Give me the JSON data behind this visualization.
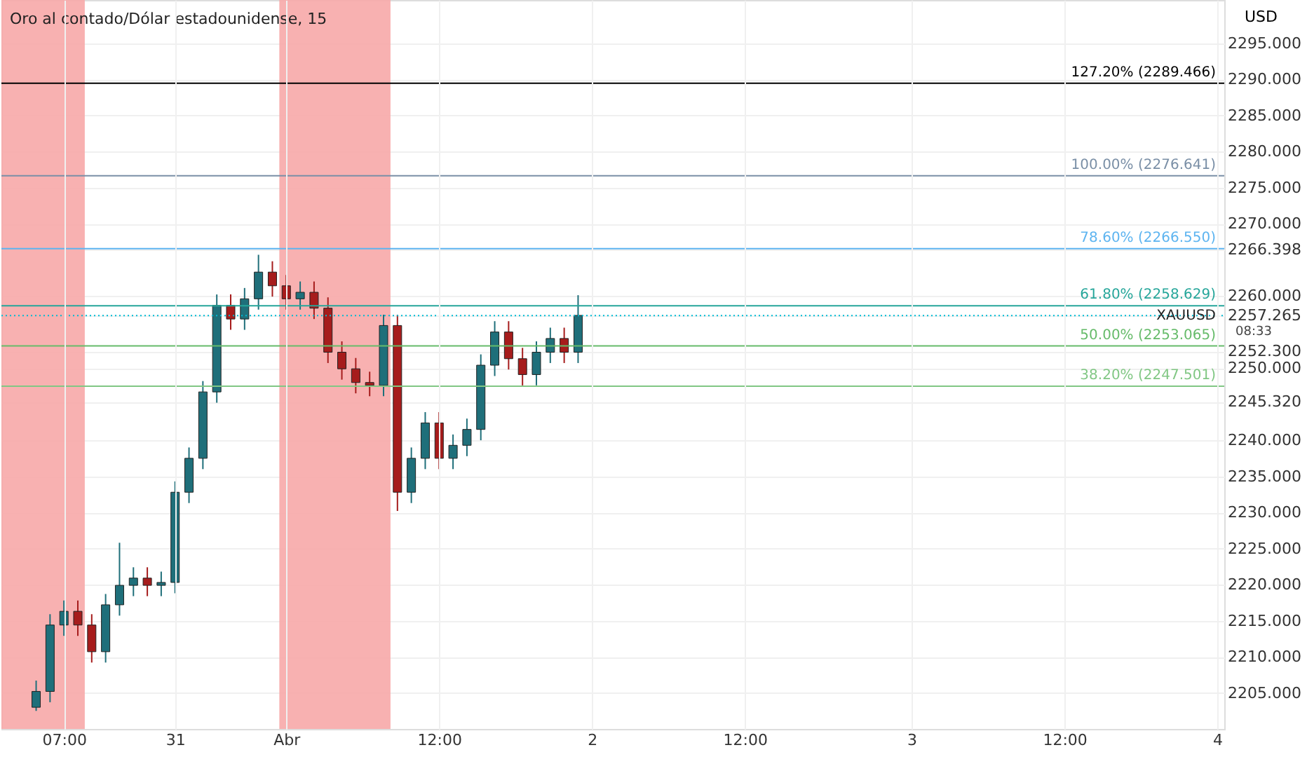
{
  "chart_data": {
    "type": "candlestick",
    "title": "Oro al contado/Dólar estadounidense, 15",
    "ylabel": "USD",
    "categories": [
      null,
      null,
      null,
      null,
      "07:00",
      null,
      null,
      null,
      null,
      null,
      null,
      null,
      "31",
      null,
      null,
      null,
      null,
      null,
      null,
      null,
      "Abr",
      null,
      null,
      null,
      null,
      null,
      null,
      null,
      null,
      null,
      null,
      "12:00",
      null,
      null,
      null,
      null,
      null,
      null,
      null,
      null,
      null,
      null,
      "2",
      null,
      null,
      null,
      null,
      null,
      null,
      null,
      null,
      null,
      null,
      "12:00",
      null,
      null,
      null,
      null,
      null,
      null,
      null,
      null,
      null,
      null,
      null,
      "3",
      null,
      null,
      null,
      null,
      null,
      null,
      null,
      null,
      null,
      null,
      "12:00",
      null,
      null,
      null,
      null,
      null,
      null,
      null,
      null,
      null,
      null,
      "4"
    ],
    "ohlc": [
      null,
      null,
      [
        2203.0,
        2206.7,
        2202.5,
        2205.2
      ],
      [
        2205.2,
        2215.9,
        2203.7,
        2214.4
      ],
      [
        2214.4,
        2217.8,
        2212.9,
        2216.3
      ],
      [
        2216.3,
        2217.8,
        2212.9,
        2214.4
      ],
      [
        2214.4,
        2215.9,
        2209.2,
        2210.7
      ],
      [
        2210.7,
        2218.7,
        2209.2,
        2217.2
      ],
      [
        2217.2,
        2225.8,
        2215.7,
        2219.9
      ],
      [
        2219.9,
        2222.4,
        2218.4,
        2220.9
      ],
      [
        2220.9,
        2222.4,
        2218.4,
        2219.9
      ],
      [
        2219.9,
        2221.8,
        2218.4,
        2220.3
      ],
      [
        2220.3,
        2234.3,
        2218.8,
        2232.8
      ],
      [
        2232.8,
        2239.0,
        2231.3,
        2237.5
      ],
      [
        2237.5,
        2248.2,
        2236.0,
        2246.7
      ],
      [
        2246.7,
        2260.2,
        2245.2,
        2258.7
      ],
      [
        2258.7,
        2260.2,
        2255.3,
        2256.8
      ],
      [
        2256.8,
        2261.1,
        2255.3,
        2259.6
      ],
      [
        2259.6,
        2265.7,
        2258.1,
        2263.3
      ],
      [
        2263.3,
        2264.8,
        2259.9,
        2261.4
      ],
      [
        2261.4,
        2262.9,
        2258.1,
        2259.6
      ],
      [
        2259.6,
        2262.0,
        2258.1,
        2260.5
      ],
      [
        2260.5,
        2262.0,
        2256.8,
        2258.3
      ],
      [
        2258.3,
        2259.8,
        2250.7,
        2252.2
      ],
      [
        2252.2,
        2253.7,
        2248.4,
        2249.9
      ],
      [
        2249.9,
        2251.4,
        2246.5,
        2248.0
      ],
      [
        2248.0,
        2249.5,
        2246.1,
        2247.6
      ],
      [
        2247.6,
        2257.4,
        2246.1,
        2255.9
      ],
      [
        2255.9,
        2257.4,
        2230.2,
        2232.8
      ],
      [
        2232.8,
        2239.0,
        2231.3,
        2237.5
      ],
      [
        2237.5,
        2243.9,
        2236.0,
        2242.4
      ],
      [
        2242.4,
        2243.9,
        2236.0,
        2237.5
      ],
      [
        2237.5,
        2240.8,
        2236.0,
        2239.3
      ],
      [
        2239.3,
        2243.0,
        2237.8,
        2241.5
      ],
      [
        2241.5,
        2251.9,
        2240.0,
        2250.4
      ],
      [
        2250.4,
        2256.5,
        2248.9,
        2255.0
      ],
      [
        2255.0,
        2256.5,
        2249.8,
        2251.3
      ],
      [
        2251.3,
        2252.8,
        2247.6,
        2249.1
      ],
      [
        2249.1,
        2253.7,
        2247.6,
        2252.2
      ],
      [
        2252.2,
        2255.6,
        2250.7,
        2254.1
      ],
      [
        2254.1,
        2255.6,
        2250.7,
        2252.2
      ],
      [
        2252.2,
        2260.1,
        2250.7,
        2257.3
      ],
      null,
      null,
      null,
      null,
      null,
      null,
      null,
      null,
      null,
      null,
      null,
      null,
      null,
      null,
      null,
      null,
      null,
      null,
      null,
      null,
      null,
      null,
      null,
      null,
      null,
      null,
      null,
      null,
      null,
      null,
      null,
      null,
      null,
      null,
      null,
      null,
      null,
      null,
      null,
      null,
      null,
      null,
      null,
      null,
      null,
      null
    ],
    "colors": [
      null,
      null,
      "#1f6f7a",
      "#1f6f7a",
      "#1f6f7a",
      "#a61c1c",
      "#a61c1c",
      "#1f6f7a",
      "#1f6f7a",
      "#1f6f7a",
      "#a61c1c",
      "#1f6f7a",
      "#1f6f7a",
      "#1f6f7a",
      "#1f6f7a",
      "#1f6f7a",
      "#a61c1c",
      "#1f6f7a",
      "#1f6f7a",
      "#a61c1c",
      "#a61c1c",
      "#1f6f7a",
      "#a61c1c",
      "#a61c1c",
      "#a61c1c",
      "#a61c1c",
      "#a61c1c",
      "#1f6f7a",
      "#a61c1c",
      "#1f6f7a",
      "#1f6f7a",
      "#a61c1c",
      "#1f6f7a",
      "#1f6f7a",
      "#1f6f7a",
      "#1f6f7a",
      "#a61c1c",
      "#a61c1c",
      "#1f6f7a",
      "#1f6f7a",
      "#a61c1c",
      "#1f6f7a",
      null,
      null,
      null,
      null,
      null,
      null,
      null,
      null,
      null,
      null,
      null,
      null,
      null,
      null,
      null,
      null,
      null,
      null,
      null,
      null,
      null,
      null,
      null,
      null,
      null,
      null,
      null,
      null,
      null,
      null,
      null,
      null,
      null,
      null,
      null,
      null,
      null,
      null,
      null,
      null,
      null,
      null,
      null,
      null,
      null,
      null
    ],
    "ylim": [
      2200,
      2301
    ],
    "yticks": [
      {
        "value": 2205,
        "label": "2205.000"
      },
      {
        "value": 2210,
        "label": "2210.000"
      },
      {
        "value": 2215,
        "label": "2215.000"
      },
      {
        "value": 2220,
        "label": "2220.000"
      },
      {
        "value": 2225,
        "label": "2225.000"
      },
      {
        "value": 2230,
        "label": "2230.000"
      },
      {
        "value": 2235,
        "label": "2235.000"
      },
      {
        "value": 2240,
        "label": "2240.000"
      },
      {
        "value": 2245.32,
        "label": "2245.320"
      },
      {
        "value": 2250,
        "label": "2250.000"
      },
      {
        "value": 2252.3,
        "label": "2252.300"
      },
      {
        "value": 2257.265,
        "label": "2257.265"
      },
      {
        "value": 2260,
        "label": "2260.000"
      },
      {
        "value": 2266.398,
        "label": "2266.398"
      },
      {
        "value": 2270,
        "label": "2270.000"
      },
      {
        "value": 2275,
        "label": "2275.000"
      },
      {
        "value": 2280,
        "label": "2280.000"
      },
      {
        "value": 2285,
        "label": "2285.000"
      },
      {
        "value": 2290,
        "label": "2290.000"
      },
      {
        "value": 2295,
        "label": "2295.000"
      }
    ],
    "grid": true,
    "ref_lines": [
      {
        "axis": "y",
        "value": 2289.466,
        "label": "127.20% (2289.466)",
        "color": "#000000"
      },
      {
        "axis": "y",
        "value": 2276.641,
        "label": "100.00% (2276.641)",
        "color": "#7a8fa6"
      },
      {
        "axis": "y",
        "value": 2266.55,
        "label": "78.60% (2266.550)",
        "color": "#5db4f0"
      },
      {
        "axis": "y",
        "value": 2258.629,
        "label": "61.80% (2258.629)",
        "color": "#26a69a"
      },
      {
        "axis": "y",
        "value": 2253.065,
        "label": "50.00% (2253.065)",
        "color": "#66bb6a"
      },
      {
        "axis": "y",
        "value": 2247.501,
        "label": "38.20% (2247.501)",
        "color": "#81c784"
      },
      {
        "axis": "y",
        "value": 2257.265,
        "label": "XAUUSD",
        "color": "#00bcd4",
        "line_style": "dotted"
      }
    ],
    "annotations": [
      "08:33"
    ]
  }
}
